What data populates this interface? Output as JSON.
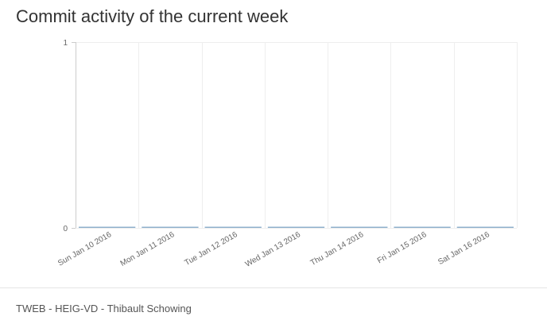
{
  "header": {
    "title": "Commit activity of the current week"
  },
  "footer": {
    "text": "TWEB - HEIG-VD - Thibault Schowing"
  },
  "chart_data": {
    "type": "bar",
    "title": "Commit activity of the current week",
    "xlabel": "",
    "ylabel": "",
    "categories": [
      "Sun Jan 10 2016",
      "Mon Jan 11 2016",
      "Tue Jan 12 2016",
      "Wed Jan 13 2016",
      "Thu Jan 14 2016",
      "Fri Jan 15 2016",
      "Sat Jan 16 2016"
    ],
    "values": [
      0,
      0,
      0,
      0,
      0,
      0,
      0
    ],
    "ylim": [
      0,
      1
    ],
    "yticks": [
      0,
      1
    ],
    "grid": true,
    "colors": {
      "bar": "#8fb0cc",
      "grid": "#eeeeee",
      "axis": "#cccccc"
    }
  }
}
